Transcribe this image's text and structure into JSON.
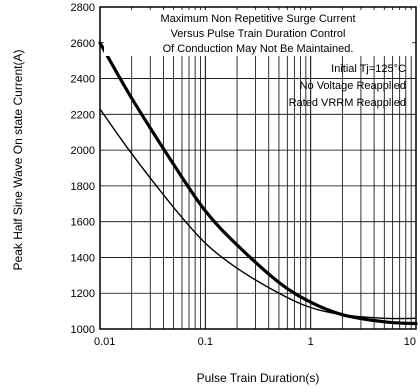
{
  "chart_data": {
    "type": "line",
    "title": "",
    "xlabel": "Pulse Train Duration(s)",
    "ylabel": "Peak Half Sine Wave On state Current(A)",
    "x_scale": "log",
    "xlim": [
      0.01,
      10
    ],
    "ylim": [
      1000,
      2800
    ],
    "x_ticks": [
      0.01,
      0.1,
      1,
      10
    ],
    "x_tick_labels": [
      "0.01",
      "0.1",
      "1",
      "10"
    ],
    "y_ticks": [
      1000,
      1200,
      1400,
      1600,
      1800,
      2000,
      2200,
      2400,
      2600,
      2800
    ],
    "y_tick_labels": [
      "1000",
      "1200",
      "1400",
      "1600",
      "1800",
      "2000",
      "2200",
      "2400",
      "2600",
      "2800"
    ],
    "grid": true,
    "annotations": [
      "Maximum Non Repetitive Surge Current",
      "Versus Pulse Train Duration Control",
      "Of Conduction May Not Be Maintained.",
      "Initial Tj=125°C",
      "No Voltage Reapplied",
      "Rated VRRM Reapplied"
    ],
    "series": [
      {
        "line_weight": "thick",
        "x": [
          0.01,
          0.02,
          0.05,
          0.1,
          0.2,
          0.5,
          1,
          2,
          5,
          10
        ],
        "y": [
          2600,
          2290,
          1920,
          1660,
          1470,
          1260,
          1150,
          1080,
          1040,
          1030
        ]
      },
      {
        "line_weight": "thin",
        "x": [
          0.01,
          0.02,
          0.05,
          0.1,
          0.2,
          0.5,
          1,
          2,
          5,
          10
        ],
        "y": [
          2230,
          1980,
          1680,
          1480,
          1340,
          1200,
          1120,
          1080,
          1060,
          1060
        ]
      }
    ]
  }
}
